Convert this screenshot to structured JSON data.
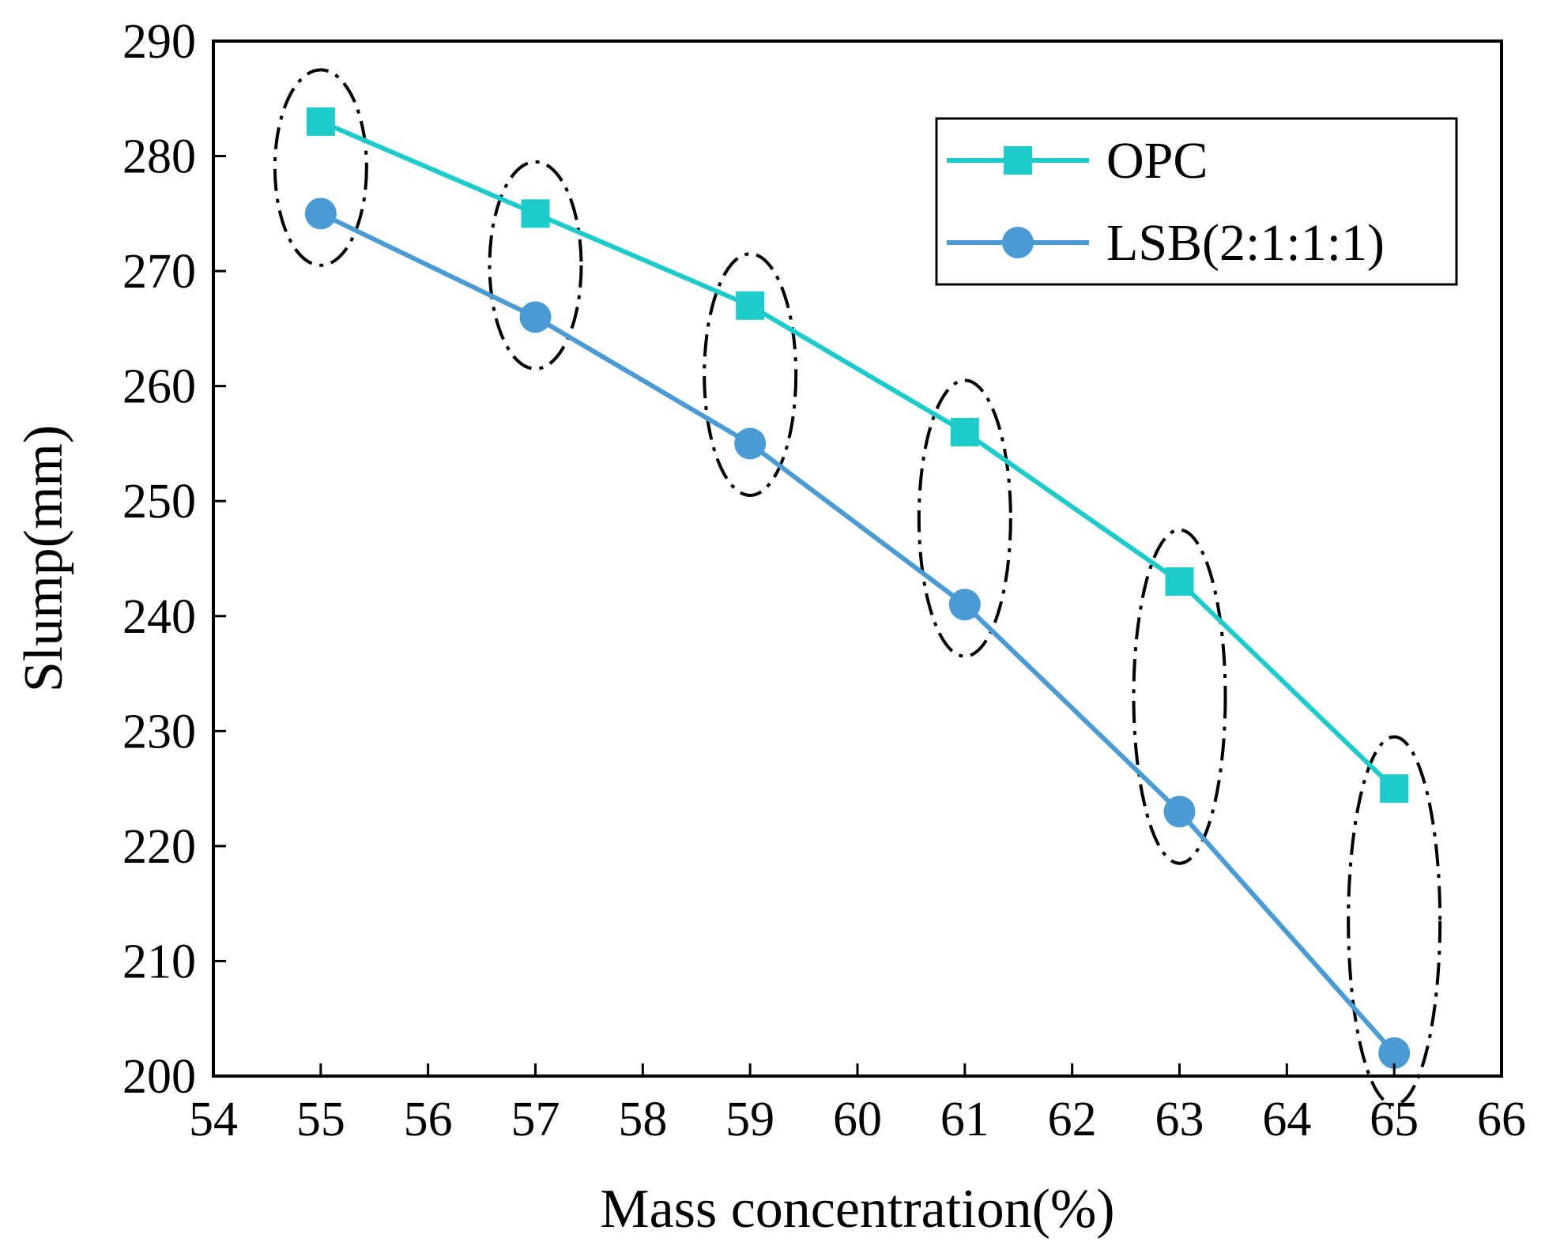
{
  "chart_data": {
    "type": "line",
    "title": "",
    "xlabel": "Mass concentration(%)",
    "ylabel": "Slump(mm)",
    "xlim": [
      54,
      66
    ],
    "ylim": [
      200,
      290
    ],
    "xticks": [
      54,
      55,
      56,
      57,
      58,
      59,
      60,
      61,
      62,
      63,
      64,
      65,
      66
    ],
    "yticks": [
      200,
      210,
      220,
      230,
      240,
      250,
      260,
      270,
      280,
      290
    ],
    "x": [
      55,
      57,
      59,
      61,
      63,
      65
    ],
    "series": [
      {
        "name": "OPC",
        "values": [
          283,
          275,
          267,
          256,
          243,
          225
        ],
        "color": "#1ECBCB",
        "marker": "square"
      },
      {
        "name": "LSB(2:1:1:1)",
        "values": [
          275,
          266,
          255,
          241,
          223,
          202
        ],
        "color": "#4A9BD4",
        "marker": "circle"
      }
    ],
    "legend": {
      "position": "top-right",
      "entries": [
        "OPC",
        "LSB(2:1:1:1)"
      ]
    },
    "annotations": "dash-dot ellipses grouping the two series values at each concentration"
  }
}
